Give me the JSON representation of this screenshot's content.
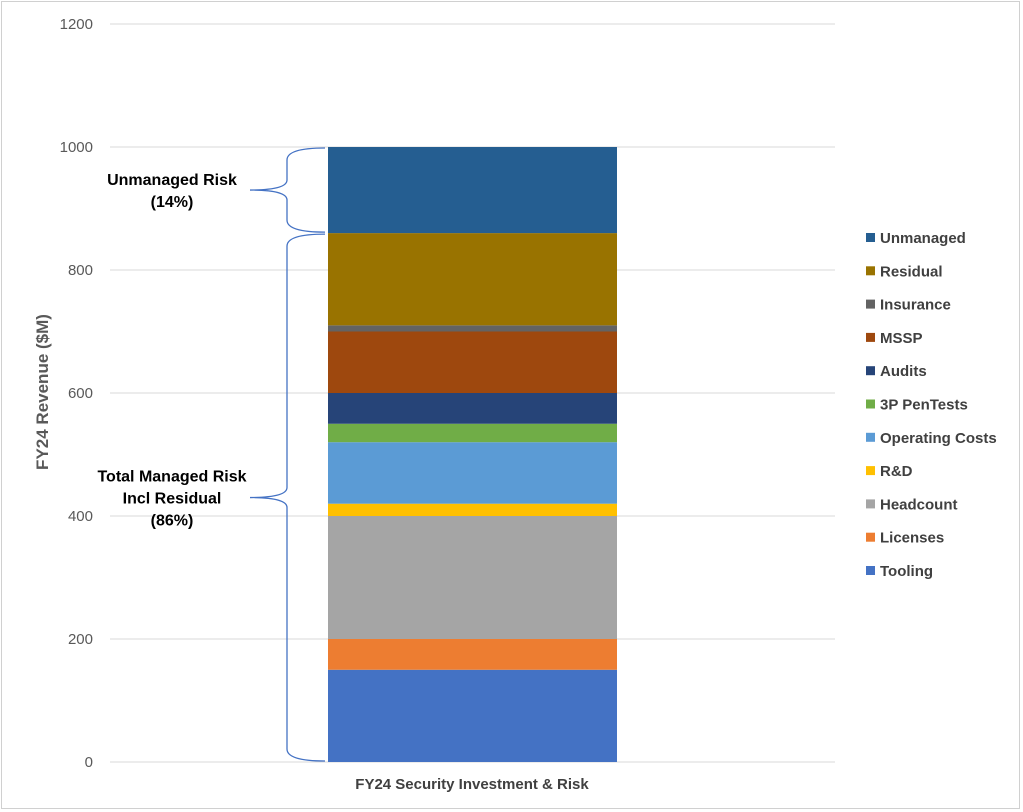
{
  "chart_data": {
    "type": "bar",
    "stacked": true,
    "categories": [
      "FY24 Security Investment & Risk"
    ],
    "ylabel": "FY24 Revenue ($M)",
    "xlabel": "",
    "ylim": [
      0,
      1200
    ],
    "yticks": [
      0,
      200,
      400,
      600,
      800,
      1000,
      1200
    ],
    "grid": true,
    "legend_position": "right",
    "series": [
      {
        "name": "Tooling",
        "values": [
          150
        ],
        "color": "#4472C4"
      },
      {
        "name": "Licenses",
        "values": [
          50
        ],
        "color": "#ED7D31"
      },
      {
        "name": "Headcount",
        "values": [
          200
        ],
        "color": "#A5A5A5"
      },
      {
        "name": "R&D",
        "values": [
          20
        ],
        "color": "#FFC000"
      },
      {
        "name": "Operating Costs",
        "values": [
          100
        ],
        "color": "#5B9BD5"
      },
      {
        "name": "3P PenTests",
        "values": [
          30
        ],
        "color": "#70AD47"
      },
      {
        "name": "Audits",
        "values": [
          50
        ],
        "color": "#264478"
      },
      {
        "name": "MSSP",
        "values": [
          100
        ],
        "color": "#9E480E"
      },
      {
        "name": "Insurance",
        "values": [
          10
        ],
        "color": "#636363"
      },
      {
        "name": "Residual",
        "values": [
          150
        ],
        "color": "#997300"
      },
      {
        "name": "Unmanaged",
        "values": [
          140
        ],
        "color": "#255E91"
      }
    ],
    "annotations": [
      {
        "lines": [
          "Unmanaged Risk",
          "(14%)"
        ],
        "from": 860,
        "to": 1000
      },
      {
        "lines": [
          "Total Managed Risk",
          "Incl Residual",
          "(86%)"
        ],
        "from": 0,
        "to": 860
      }
    ],
    "bracket_color": "#4472C4"
  }
}
